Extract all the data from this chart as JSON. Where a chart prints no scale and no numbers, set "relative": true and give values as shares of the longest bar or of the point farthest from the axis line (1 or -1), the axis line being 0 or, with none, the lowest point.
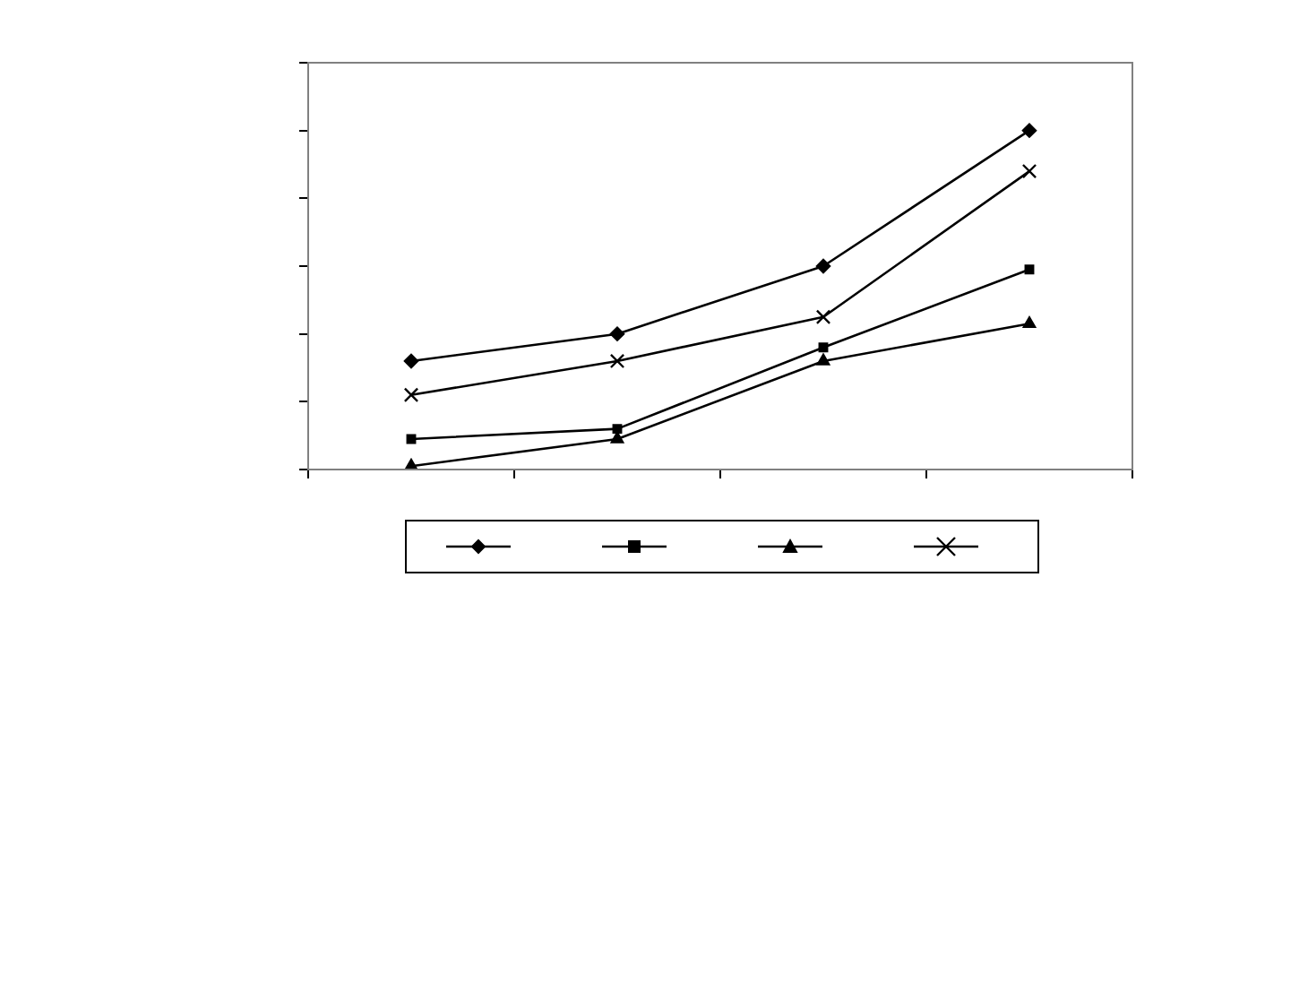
{
  "chart_data": {
    "type": "line",
    "relative": true,
    "categories": [
      null,
      null,
      null,
      null
    ],
    "grid": false,
    "line_style": "solid",
    "series": [
      {
        "color": "#000000",
        "marker": "diamond",
        "values": [
          0.32,
          0.4,
          0.6,
          1
        ]
      },
      {
        "color": "#000000",
        "marker": "square",
        "values": [
          0.09,
          0.12,
          0.36,
          0.59
        ]
      },
      {
        "color": "#000000",
        "marker": "triangle",
        "values": [
          0.01,
          0.09,
          0.32,
          0.43
        ]
      },
      {
        "color": "#000000",
        "marker": "cross",
        "values": [
          0.22,
          0.32,
          0.45,
          0.88
        ]
      }
    ]
  }
}
